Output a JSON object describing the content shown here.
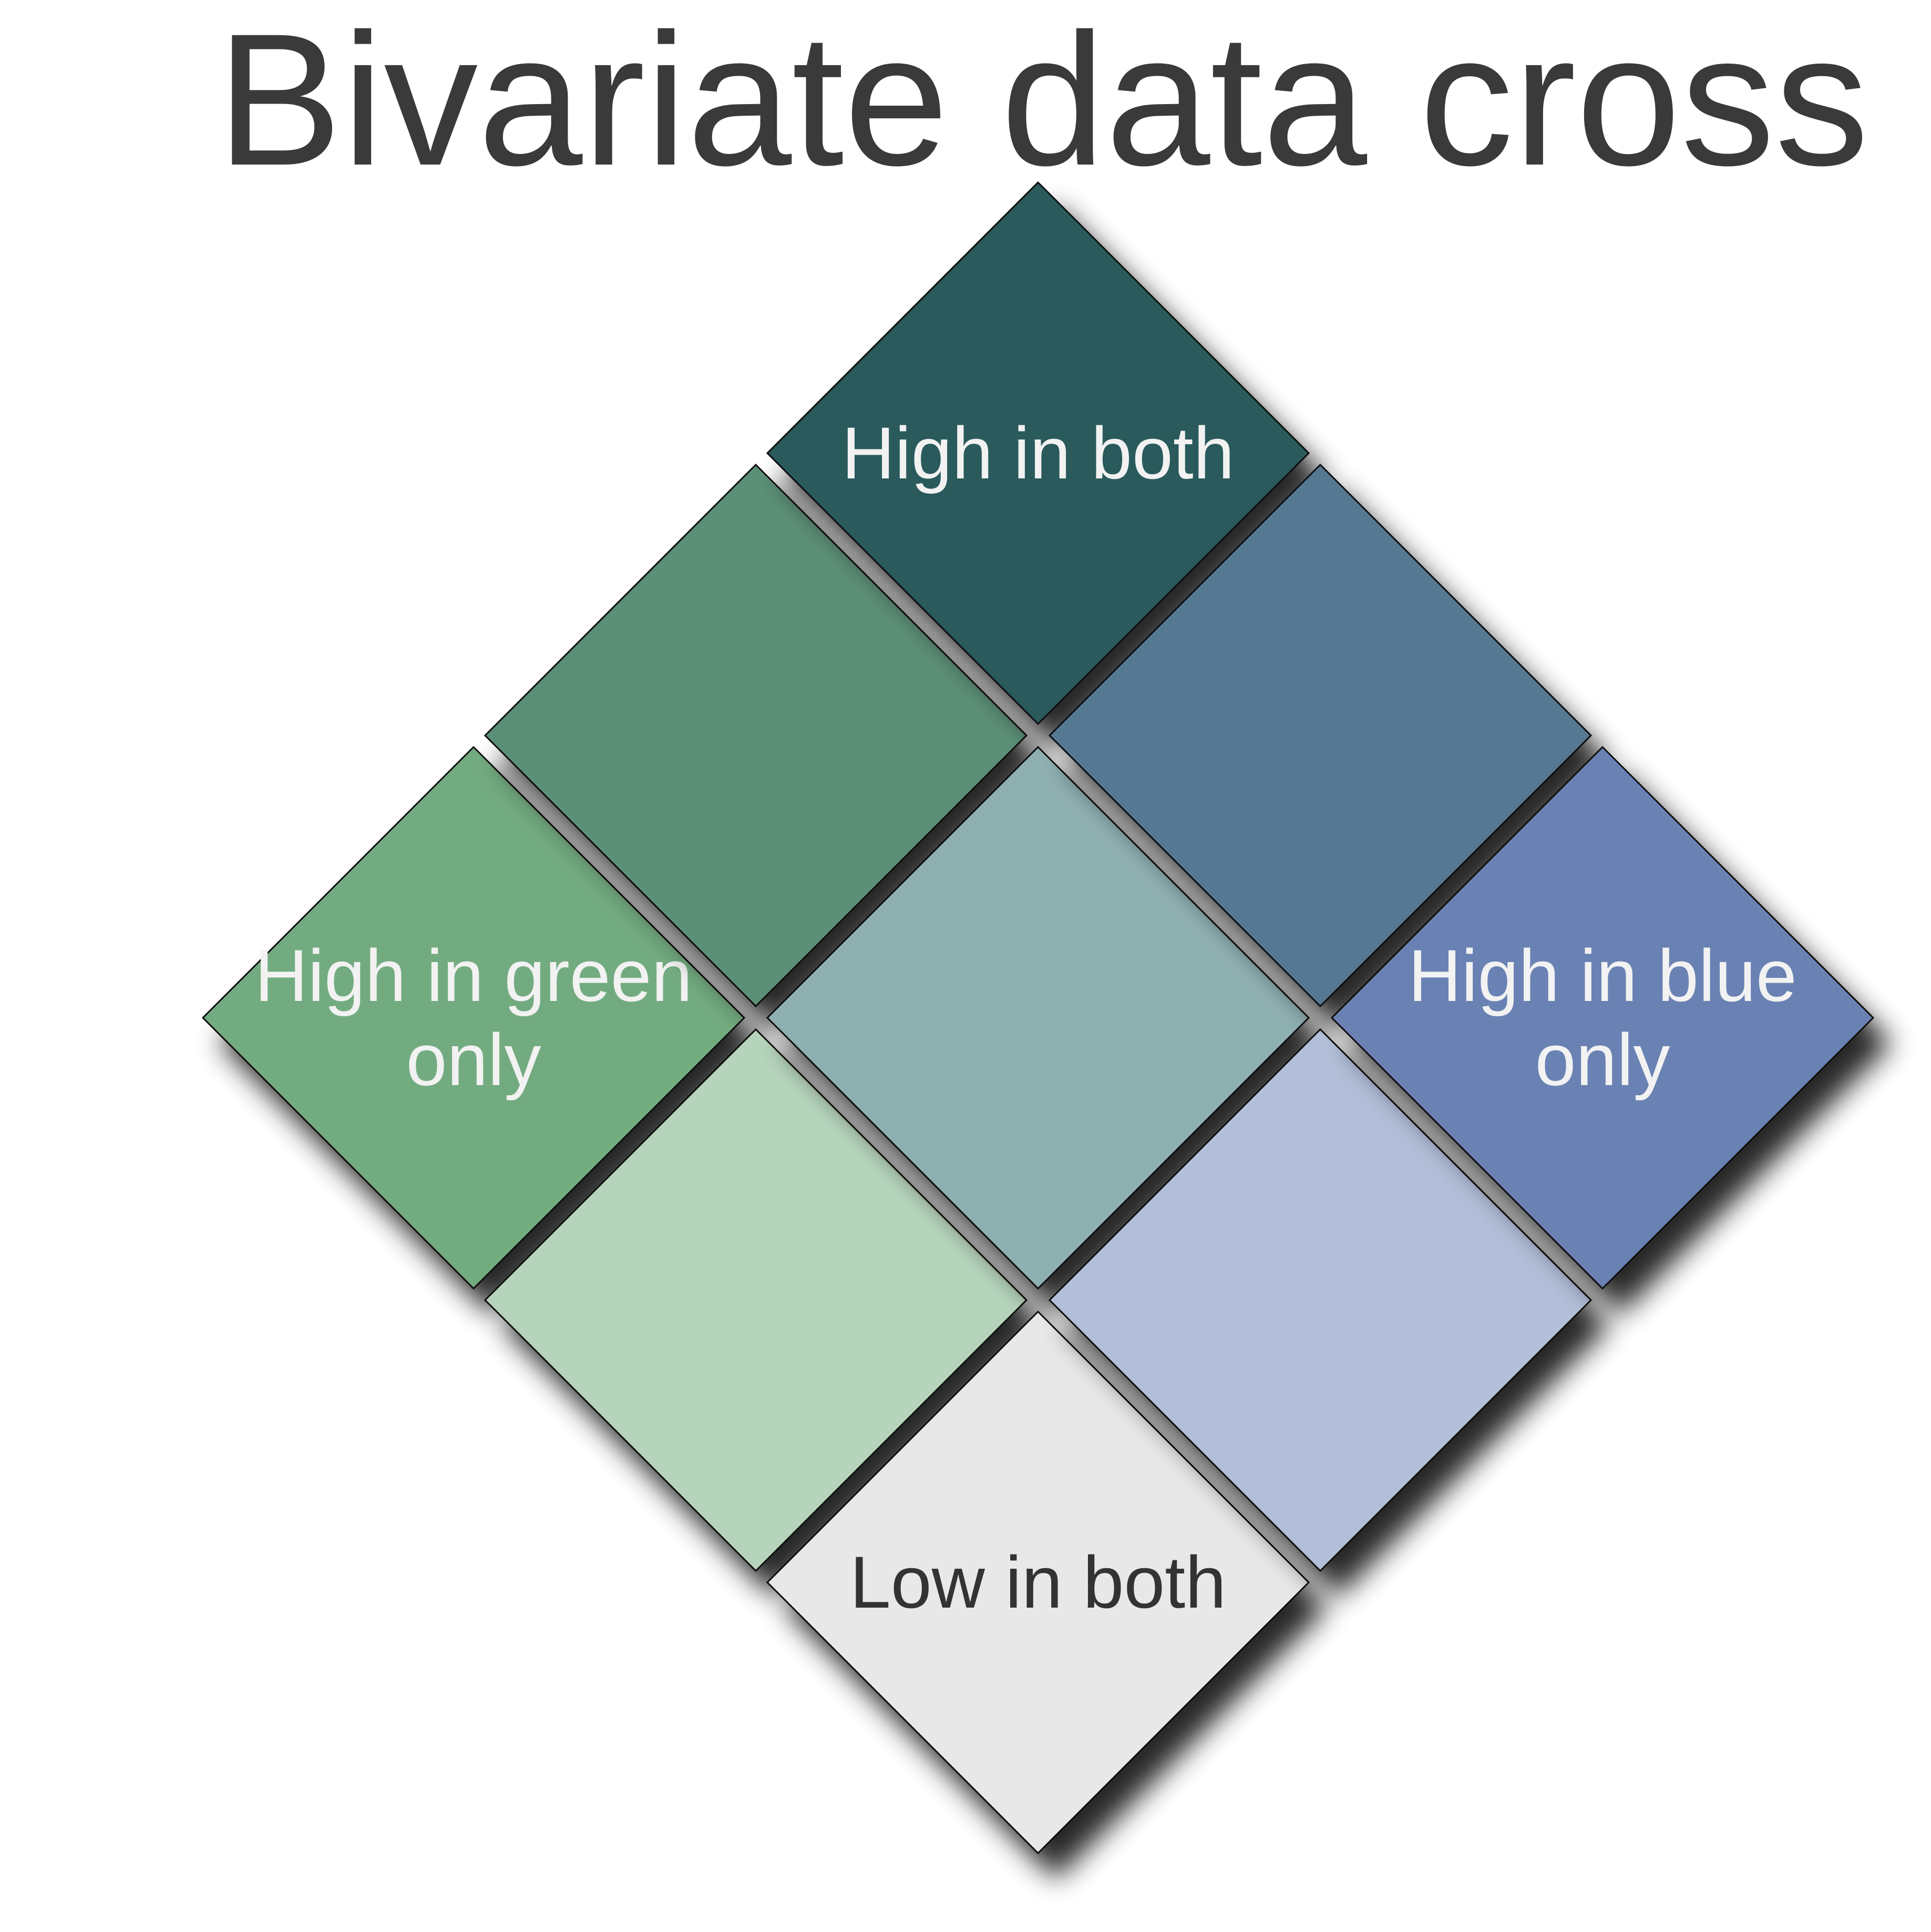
{
  "title": "Bivariate data cross",
  "cells": [
    {
      "id": "high-green-only",
      "color": "#73ab80",
      "label_lines": [
        "High in green",
        "only"
      ],
      "label_color": "#f2f2f2"
    },
    {
      "id": "green-high-blue-mid",
      "color": "#5c8f77",
      "label_lines": [],
      "label_color": "#f2f2f2"
    },
    {
      "id": "high-in-both",
      "color": "#2b5a5c",
      "label_lines": [
        "High in both"
      ],
      "label_color": "#f2f2f2"
    },
    {
      "id": "green-mid-blue-low",
      "color": "#b6d4bc",
      "label_lines": [],
      "label_color": "#f2f2f2"
    },
    {
      "id": "mid-in-both",
      "color": "#8fb0b1",
      "label_lines": [],
      "label_color": "#f2f2f2"
    },
    {
      "id": "green-mid-blue-high",
      "color": "#557893",
      "label_lines": [],
      "label_color": "#f2f2f2"
    },
    {
      "id": "low-in-both",
      "color": "#e8e8e8",
      "label_lines": [
        "Low in both"
      ],
      "label_color": "#333333"
    },
    {
      "id": "green-low-blue-mid",
      "color": "#b3bfd9",
      "label_lines": [],
      "label_color": "#f2f2f2"
    },
    {
      "id": "high-blue-only",
      "color": "#6b82b3",
      "label_lines": [
        "High in blue",
        "only"
      ],
      "label_color": "#f2f2f2"
    }
  ]
}
